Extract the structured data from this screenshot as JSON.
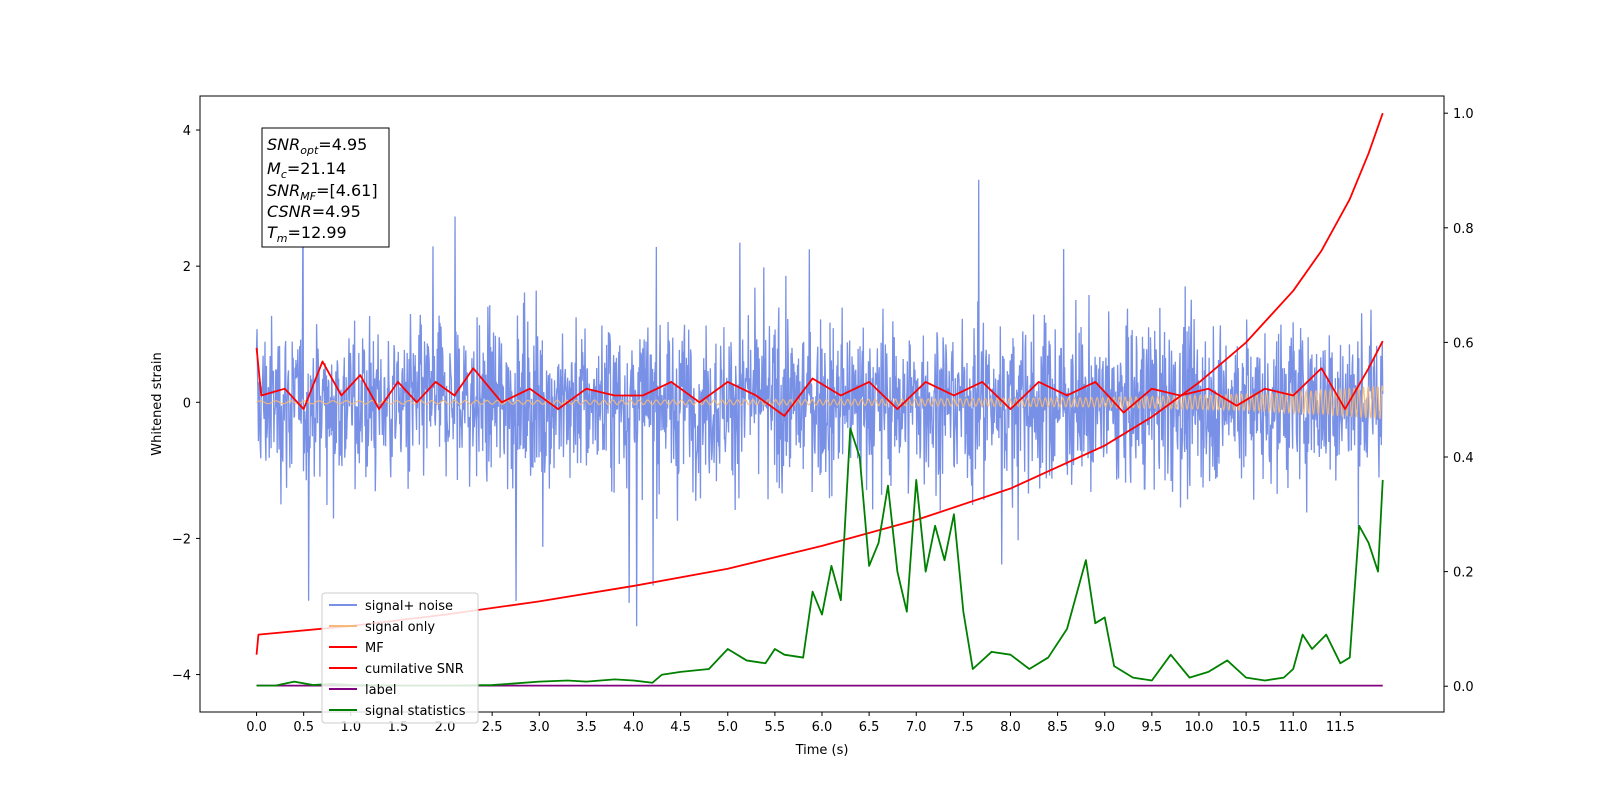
{
  "chart_data": {
    "type": "line",
    "xlabel": "Time (s)",
    "ylabel": "Whitened strain",
    "xlim": [
      -0.6,
      12.6
    ],
    "ylim_left": [
      -4.55,
      4.5
    ],
    "ylim_right": [
      -0.045,
      1.03
    ],
    "x_ticks": [
      0.0,
      0.5,
      1.0,
      1.5,
      2.0,
      2.5,
      3.0,
      3.5,
      4.0,
      4.5,
      5.0,
      5.5,
      6.0,
      6.5,
      7.0,
      7.5,
      8.0,
      8.5,
      9.0,
      9.5,
      10.0,
      10.5,
      11.0,
      11.5
    ],
    "y_ticks_left": [
      -4,
      -2,
      0,
      2,
      4
    ],
    "y_ticks_right": [
      0.0,
      0.2,
      0.4,
      0.6,
      0.8,
      1.0
    ],
    "grid": false,
    "legend_placement": "lower-left",
    "series": [
      {
        "name": "signal+ noise",
        "axis": "left",
        "color": "#7890e6",
        "style": "noise band between about -2.7 and 2.7 with spikes to about ±4"
      },
      {
        "name": "signal only",
        "axis": "left",
        "color": "#f5b97a",
        "x": [
          0.0,
          6.0,
          9.0,
          10.5,
          11.3,
          11.95
        ],
        "amplitude": [
          0.02,
          0.04,
          0.07,
          0.12,
          0.18,
          0.25
        ]
      },
      {
        "name": "MF",
        "axis": "left",
        "color": "#ff0000",
        "x": [
          0.0,
          0.05,
          0.3,
          0.5,
          0.7,
          0.9,
          1.1,
          1.3,
          1.5,
          1.7,
          1.9,
          2.1,
          2.3,
          2.6,
          2.9,
          3.2,
          3.5,
          3.8,
          4.1,
          4.4,
          4.7,
          5.0,
          5.3,
          5.6,
          5.9,
          6.2,
          6.5,
          6.8,
          7.1,
          7.4,
          7.7,
          8.0,
          8.3,
          8.6,
          8.9,
          9.2,
          9.5,
          9.8,
          10.1,
          10.4,
          10.7,
          11.0,
          11.3,
          11.55,
          11.8,
          11.95
        ],
        "y": [
          0.8,
          0.1,
          0.2,
          -0.1,
          0.6,
          0.1,
          0.4,
          -0.1,
          0.3,
          0.0,
          0.3,
          0.1,
          0.5,
          0.0,
          0.2,
          -0.1,
          0.2,
          0.1,
          0.1,
          0.3,
          0.0,
          0.3,
          0.1,
          -0.2,
          0.35,
          0.1,
          0.3,
          -0.1,
          0.3,
          0.1,
          0.3,
          -0.1,
          0.3,
          0.1,
          0.3,
          -0.15,
          0.2,
          0.1,
          0.2,
          -0.05,
          0.2,
          0.1,
          0.5,
          -0.1,
          0.5,
          0.9
        ]
      },
      {
        "name": "cumilative SNR",
        "axis": "right",
        "color": "#ff0000",
        "x": [
          0.0,
          0.02,
          1.0,
          2.0,
          3.0,
          4.0,
          5.0,
          6.0,
          7.0,
          8.0,
          9.0,
          9.5,
          10.0,
          10.5,
          11.0,
          11.3,
          11.6,
          11.8,
          11.95
        ],
        "y": [
          0.055,
          0.09,
          0.105,
          0.125,
          0.148,
          0.175,
          0.205,
          0.245,
          0.29,
          0.345,
          0.42,
          0.47,
          0.53,
          0.6,
          0.69,
          0.76,
          0.85,
          0.93,
          1.0
        ]
      },
      {
        "name": "label",
        "axis": "right",
        "color": "#800080",
        "x": [
          0.0,
          11.95
        ],
        "y": [
          0.001,
          0.001
        ]
      },
      {
        "name": "signal statistics",
        "axis": "right",
        "color": "#008000",
        "x": [
          0.0,
          0.2,
          0.4,
          0.6,
          0.8,
          1.0,
          1.5,
          2.0,
          2.5,
          3.0,
          3.3,
          3.5,
          3.8,
          4.0,
          4.2,
          4.3,
          4.5,
          4.8,
          5.0,
          5.2,
          5.4,
          5.5,
          5.6,
          5.8,
          5.9,
          6.0,
          6.1,
          6.2,
          6.3,
          6.4,
          6.5,
          6.6,
          6.7,
          6.8,
          6.9,
          7.0,
          7.1,
          7.2,
          7.3,
          7.4,
          7.5,
          7.6,
          7.8,
          8.0,
          8.2,
          8.4,
          8.6,
          8.8,
          8.9,
          9.0,
          9.1,
          9.3,
          9.5,
          9.7,
          9.9,
          10.1,
          10.3,
          10.5,
          10.7,
          10.9,
          11.0,
          11.1,
          11.2,
          11.35,
          11.5,
          11.6,
          11.7,
          11.8,
          11.9,
          11.95
        ],
        "y": [
          0.001,
          0.001,
          0.008,
          0.002,
          0.004,
          0.002,
          0.001,
          0.001,
          0.002,
          0.008,
          0.01,
          0.008,
          0.012,
          0.01,
          0.006,
          0.02,
          0.025,
          0.03,
          0.065,
          0.045,
          0.04,
          0.065,
          0.055,
          0.05,
          0.165,
          0.125,
          0.21,
          0.15,
          0.45,
          0.4,
          0.21,
          0.25,
          0.35,
          0.2,
          0.13,
          0.36,
          0.2,
          0.28,
          0.22,
          0.3,
          0.13,
          0.03,
          0.06,
          0.055,
          0.03,
          0.05,
          0.1,
          0.22,
          0.11,
          0.12,
          0.035,
          0.015,
          0.01,
          0.055,
          0.015,
          0.025,
          0.045,
          0.015,
          0.01,
          0.015,
          0.03,
          0.09,
          0.065,
          0.09,
          0.04,
          0.05,
          0.28,
          0.25,
          0.2,
          0.36
        ]
      }
    ]
  },
  "stats": {
    "line1_sym": "SNR",
    "line1_sub": "opt",
    "line1_val": "=4.95",
    "line2_sym": "M",
    "line2_sub": "c",
    "line2_val": "=21.14",
    "line3_sym": "SNR",
    "line3_sub": "MF",
    "line3_val": "=[4.61]",
    "line4_sym": "CSNR",
    "line4_val": "=4.95",
    "line5_sym": "T",
    "line5_sub": "m",
    "line5_val": "=12.99"
  },
  "legend": [
    {
      "label": "signal+ noise",
      "color": "#7890e6"
    },
    {
      "label": "signal only",
      "color": "#f5b97a"
    },
    {
      "label": "MF",
      "color": "#ff0000"
    },
    {
      "label": "cumilative SNR",
      "color": "#ff0000"
    },
    {
      "label": "label",
      "color": "#800080"
    },
    {
      "label": "signal statistics",
      "color": "#008000"
    }
  ]
}
